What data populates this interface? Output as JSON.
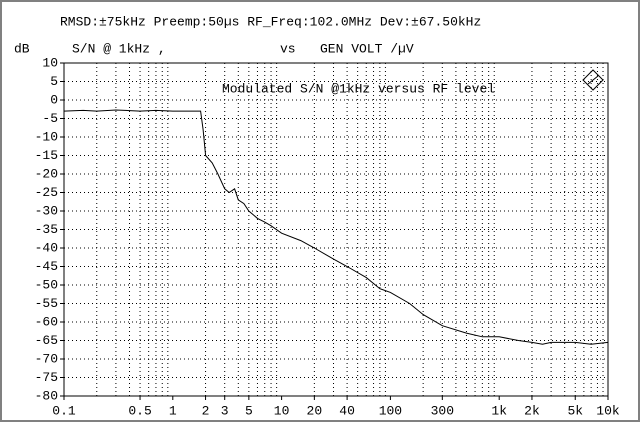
{
  "chart_data": {
    "type": "line",
    "title": "RMSD:±75kHz Preemp:50µs RF_Freq:102.0MHz Dev:±67.50kHz",
    "yunit": "dB",
    "ylabel": "S/N @ 1kHz ,",
    "vs": "vs",
    "xlabel": "GEN VOLT /µV",
    "annotation": "Modulated S/N @1kHz versus RF level",
    "xscale": "log",
    "grid": true,
    "color": "#000000",
    "xlim": [
      0.1,
      10000
    ],
    "ylim": [
      -80,
      10
    ],
    "xticks": [
      0.1,
      0.5,
      1,
      2,
      3,
      5,
      10,
      20,
      40,
      100,
      300,
      {
        "value": 1000,
        "label": "1k"
      },
      {
        "value": 2000,
        "label": "2k"
      },
      {
        "value": 5000,
        "label": "5k"
      },
      {
        "value": 10000,
        "label": "10k"
      }
    ],
    "yticks": [
      10,
      5,
      0,
      -5,
      -10,
      -15,
      -20,
      -25,
      -30,
      -35,
      -40,
      -45,
      -50,
      -55,
      -60,
      -65,
      -70,
      -75,
      -80
    ],
    "x": [
      0.1,
      0.15,
      0.2,
      0.3,
      0.5,
      0.7,
      1,
      1.5,
      1.8,
      1.9,
      2,
      2.3,
      2.6,
      3,
      3.3,
      3.7,
      4,
      4.5,
      5,
      6,
      7,
      8,
      10,
      15,
      20,
      30,
      40,
      60,
      80,
      100,
      150,
      200,
      300,
      500,
      700,
      1000,
      1500,
      2000,
      2500,
      3000,
      5000,
      7000,
      10000
    ],
    "values": [
      -3,
      -2.8,
      -3,
      -2.7,
      -3,
      -2.8,
      -3,
      -3,
      -3,
      -8,
      -15,
      -17,
      -20,
      -24,
      -25,
      -24,
      -27,
      -28,
      -30,
      -32,
      -33,
      -34,
      -36,
      -38,
      -40,
      -43,
      -45,
      -48,
      -51,
      -52,
      -55,
      -58,
      -61,
      -63,
      -64,
      -64,
      -65,
      -65.5,
      -66,
      -65.5,
      -65.5,
      -66,
      -65.5
    ]
  }
}
